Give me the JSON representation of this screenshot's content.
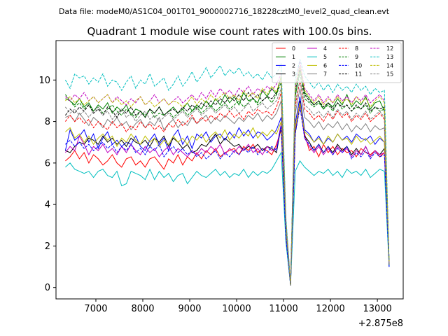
{
  "chart_data": {
    "type": "line",
    "suptitle": "Data file: modeM0/AS1C04_001T01_9000002716_18228cztM0_level2_quad_clean.evt",
    "title": "Quadrant 1 module wise count rates with 100.0s bins.",
    "xlabel": "",
    "ylabel": "",
    "x_offset_label": "+2.875e8",
    "xlim": [
      6150,
      13550
    ],
    "ylim": [
      -0.55,
      11.9
    ],
    "x_ticks": [
      7000,
      8000,
      9000,
      10000,
      11000,
      12000,
      13000
    ],
    "x_tick_labels": [
      "7000",
      "8000",
      "9000",
      "10000",
      "11000",
      "12000",
      "13000"
    ],
    "y_ticks": [
      0,
      2,
      4,
      6,
      8,
      10
    ],
    "y_tick_labels": [
      "0",
      "2",
      "4",
      "6",
      "8",
      "10"
    ],
    "x_start": 6350,
    "x_step": 100,
    "legend_columns": 4,
    "legend_location": "upper right",
    "series": [
      {
        "name": "0",
        "color": "#ff0000",
        "dash": "solid",
        "values": [
          6.1,
          6.3,
          6.6,
          6.2,
          6.5,
          6.0,
          6.4,
          6.2,
          5.9,
          6.1,
          6.4,
          6.0,
          5.8,
          6.2,
          6.3,
          5.9,
          6.1,
          5.8,
          6.2,
          6.3,
          6.0,
          5.7,
          6.2,
          6.0,
          6.4,
          5.9,
          6.3,
          6.1,
          6.5,
          6.2,
          6.6,
          6.4,
          6.7,
          6.3,
          6.5,
          6.6,
          6.7,
          6.4,
          6.8,
          6.6,
          6.9,
          6.5,
          6.7,
          6.6,
          6.4,
          6.9,
          7.6,
          2.5,
          0.2,
          7.5,
          8.8,
          7.4,
          6.6,
          6.8,
          6.3,
          6.9,
          6.5,
          6.8,
          6.4,
          6.7,
          6.5,
          6.6,
          6.3,
          6.7,
          6.5,
          6.4,
          6.6,
          6.3,
          6.5,
          1.2
        ]
      },
      {
        "name": "1",
        "color": "#008000",
        "dash": "solid",
        "values": [
          9.1,
          9.0,
          8.8,
          9.1,
          8.7,
          8.9,
          8.5,
          8.8,
          8.6,
          8.9,
          8.4,
          8.7,
          8.5,
          8.8,
          8.3,
          8.6,
          8.5,
          8.2,
          8.6,
          8.4,
          8.7,
          8.3,
          8.5,
          8.7,
          8.4,
          8.6,
          8.9,
          8.5,
          8.8,
          8.6,
          9.0,
          8.7,
          9.1,
          8.8,
          9.3,
          8.9,
          9.2,
          8.8,
          9.4,
          9.0,
          9.1,
          8.9,
          9.5,
          9.2,
          9.6,
          9.3,
          10.2,
          3.0,
          0.2,
          9.2,
          10.5,
          9.4,
          9.1,
          8.8,
          9.0,
          8.6,
          8.9,
          8.7,
          9.1,
          8.8,
          9.3,
          8.7,
          9.0,
          8.8,
          9.2,
          8.6,
          8.9,
          9.0,
          8.5,
          1.2
        ]
      },
      {
        "name": "2",
        "color": "#0000ff",
        "dash": "solid",
        "values": [
          6.6,
          7.6,
          7.1,
          7.3,
          7.6,
          7.0,
          7.4,
          6.7,
          7.2,
          7.5,
          6.9,
          7.1,
          6.8,
          7.0,
          6.9,
          7.3,
          6.8,
          6.6,
          7.1,
          7.4,
          6.9,
          7.2,
          6.6,
          7.3,
          7.6,
          6.9,
          7.3,
          6.7,
          7.4,
          7.2,
          7.5,
          7.0,
          7.3,
          7.4,
          7.1,
          7.5,
          7.2,
          7.7,
          7.3,
          7.6,
          7.2,
          7.5,
          7.4,
          7.1,
          7.3,
          7.6,
          8.2,
          2.7,
          0.2,
          7.9,
          9.2,
          7.6,
          7.4,
          7.0,
          7.3,
          6.9,
          7.2,
          7.0,
          7.4,
          7.1,
          7.3,
          7.0,
          7.4,
          7.2,
          7.1,
          7.3,
          6.9,
          7.2,
          7.0,
          1.0
        ]
      },
      {
        "name": "3",
        "color": "#000000",
        "dash": "solid",
        "values": [
          6.6,
          6.5,
          6.8,
          7.0,
          6.9,
          7.2,
          7.1,
          6.9,
          7.3,
          7.0,
          7.2,
          6.9,
          7.1,
          6.8,
          7.2,
          7.0,
          6.9,
          7.1,
          6.8,
          7.2,
          7.0,
          7.3,
          6.8,
          7.2,
          7.0,
          6.7,
          6.9,
          6.5,
          6.6,
          6.9,
          6.8,
          7.1,
          7.4,
          6.9,
          7.2,
          7.0,
          6.8,
          6.9,
          6.6,
          6.8,
          6.7,
          6.9,
          6.6,
          6.8,
          6.7,
          6.5,
          7.8,
          2.5,
          0.1,
          7.4,
          9.0,
          7.3,
          7.0,
          6.6,
          6.9,
          6.5,
          6.8,
          6.5,
          6.9,
          6.6,
          6.8,
          6.4,
          6.7,
          6.4,
          6.8,
          6.3,
          6.6,
          6.4,
          6.7,
          1.1
        ]
      },
      {
        "name": "4",
        "color": "#bf00bf",
        "dash": "solid",
        "values": [
          6.5,
          6.8,
          6.6,
          7.3,
          6.9,
          6.4,
          6.8,
          6.6,
          6.9,
          6.5,
          6.7,
          6.4,
          6.8,
          6.5,
          6.9,
          6.6,
          6.4,
          6.8,
          6.5,
          6.7,
          6.3,
          6.6,
          6.8,
          6.4,
          6.7,
          6.5,
          6.3,
          6.6,
          6.4,
          6.7,
          6.5,
          6.8,
          6.6,
          6.9,
          6.4,
          6.7,
          6.5,
          6.8,
          6.6,
          6.9,
          6.5,
          6.7,
          6.4,
          6.8,
          6.6,
          6.7,
          7.9,
          2.6,
          0.1,
          7.6,
          8.9,
          7.2,
          6.8,
          6.5,
          6.8,
          6.4,
          6.7,
          6.4,
          6.8,
          6.5,
          6.7,
          6.3,
          6.6,
          6.4,
          6.8,
          6.3,
          6.6,
          6.4,
          6.5,
          1.1
        ]
      },
      {
        "name": "5",
        "color": "#00bfbf",
        "dash": "solid",
        "values": [
          5.8,
          6.0,
          5.7,
          5.6,
          5.5,
          5.6,
          5.3,
          5.6,
          5.7,
          5.4,
          5.3,
          5.6,
          4.9,
          5.0,
          5.6,
          5.5,
          5.4,
          5.2,
          5.7,
          5.2,
          5.6,
          5.3,
          5.5,
          5.1,
          5.4,
          5.5,
          5.0,
          5.3,
          5.6,
          5.4,
          5.3,
          5.5,
          5.7,
          5.4,
          5.6,
          5.3,
          5.5,
          5.4,
          5.7,
          5.3,
          5.6,
          5.4,
          5.6,
          5.5,
          5.7,
          6.1,
          6.5,
          2.2,
          0.1,
          5.6,
          6.1,
          5.8,
          5.6,
          5.4,
          5.6,
          5.5,
          5.7,
          5.4,
          5.6,
          5.3,
          5.7,
          5.5,
          5.6,
          5.4,
          5.7,
          5.3,
          5.5,
          5.7,
          5.6,
          1.0
        ]
      },
      {
        "name": "6",
        "color": "#bfbf00",
        "dash": "solid",
        "values": [
          7.5,
          7.7,
          7.2,
          7.4,
          7.0,
          7.3,
          6.9,
          7.2,
          7.4,
          7.1,
          7.3,
          6.8,
          7.2,
          7.0,
          7.4,
          7.1,
          6.9,
          7.3,
          7.0,
          7.2,
          6.8,
          7.1,
          6.9,
          7.3,
          7.0,
          7.2,
          6.9,
          7.3,
          7.1,
          7.4,
          7.0,
          7.3,
          7.5,
          7.2,
          7.6,
          7.1,
          7.4,
          7.2,
          7.5,
          7.3,
          7.7,
          7.2,
          7.5,
          7.3,
          7.6,
          7.4,
          8.0,
          2.8,
          0.2,
          7.7,
          8.9,
          7.5,
          7.3,
          7.0,
          7.2,
          6.9,
          7.3,
          7.0,
          7.4,
          7.1,
          7.2,
          6.9,
          7.3,
          7.0,
          7.2,
          6.9,
          7.1,
          7.3,
          7.0,
          1.2
        ]
      },
      {
        "name": "7",
        "color": "#808080",
        "dash": "solid",
        "values": [
          8.2,
          8.3,
          8.0,
          8.4,
          8.1,
          7.8,
          8.2,
          8.0,
          7.7,
          8.1,
          7.9,
          8.2,
          7.8,
          8.0,
          7.6,
          7.9,
          8.1,
          7.7,
          8.0,
          7.8,
          8.2,
          7.6,
          7.9,
          8.1,
          7.7,
          8.0,
          7.8,
          8.2,
          7.9,
          8.1,
          8.3,
          7.9,
          8.2,
          8.0,
          8.3,
          8.1,
          7.9,
          8.2,
          8.0,
          8.3,
          8.1,
          8.4,
          8.0,
          8.3,
          8.1,
          8.4,
          9.0,
          2.9,
          0.1,
          8.4,
          9.6,
          8.2,
          8.0,
          7.7,
          8.0,
          7.6,
          7.9,
          7.7,
          8.0,
          7.6,
          7.9,
          7.5,
          7.8,
          7.6,
          7.9,
          7.5,
          7.8,
          7.6,
          7.7,
          1.1
        ]
      },
      {
        "name": "8",
        "color": "#ff0000",
        "dash": "dashed",
        "values": [
          8.0,
          8.3,
          8.0,
          8.2,
          7.9,
          8.1,
          7.7,
          8.0,
          7.8,
          7.6,
          8.0,
          7.7,
          7.9,
          7.5,
          7.8,
          7.6,
          8.0,
          7.7,
          7.9,
          7.6,
          7.8,
          7.5,
          7.9,
          7.7,
          8.1,
          7.8,
          8.0,
          8.3,
          7.9,
          8.2,
          8.0,
          8.3,
          8.1,
          8.4,
          8.2,
          8.5,
          8.2,
          8.4,
          8.1,
          8.5,
          8.3,
          8.6,
          8.4,
          8.5,
          8.3,
          8.7,
          9.4,
          3.0,
          0.2,
          8.7,
          10.0,
          8.6,
          8.4,
          8.1,
          8.3,
          8.0,
          8.4,
          8.1,
          8.5,
          8.2,
          8.4,
          8.0,
          8.3,
          8.1,
          8.4,
          8.0,
          8.2,
          8.4,
          8.1,
          1.1
        ]
      },
      {
        "name": "9",
        "color": "#008000",
        "dash": "dashed",
        "values": [
          9.3,
          9.0,
          8.7,
          8.9,
          8.6,
          8.8,
          8.5,
          8.7,
          8.4,
          8.6,
          8.8,
          8.5,
          8.3,
          8.6,
          8.4,
          8.2,
          8.5,
          8.3,
          8.6,
          8.2,
          8.4,
          8.3,
          8.5,
          8.2,
          8.4,
          8.6,
          8.3,
          8.5,
          8.7,
          8.4,
          8.6,
          8.8,
          8.5,
          8.7,
          8.9,
          8.6,
          8.8,
          9.0,
          8.7,
          8.9,
          9.1,
          8.8,
          9.0,
          9.2,
          8.9,
          9.3,
          9.9,
          3.1,
          0.1,
          9.3,
          10.3,
          9.1,
          8.9,
          8.7,
          8.9,
          8.6,
          8.8,
          8.5,
          8.9,
          8.6,
          8.8,
          8.5,
          8.7,
          8.6,
          8.8,
          8.4,
          8.7,
          8.5,
          8.6,
          1.1
        ]
      },
      {
        "name": "10",
        "color": "#0000ff",
        "dash": "dashed",
        "values": [
          6.9,
          7.1,
          6.8,
          7.0,
          6.7,
          6.9,
          6.6,
          6.8,
          7.0,
          6.7,
          6.9,
          6.5,
          6.8,
          6.6,
          6.9,
          6.5,
          6.7,
          6.4,
          6.8,
          6.6,
          6.9,
          6.3,
          6.6,
          6.8,
          6.5,
          6.7,
          6.4,
          6.6,
          6.3,
          6.5,
          6.2,
          6.4,
          6.6,
          6.2,
          6.5,
          6.3,
          6.6,
          6.4,
          6.7,
          6.5,
          6.8,
          6.4,
          6.7,
          6.5,
          6.8,
          6.6,
          7.8,
          2.4,
          0.1,
          7.4,
          8.7,
          7.2,
          6.9,
          6.6,
          6.9,
          6.5,
          6.8,
          6.4,
          6.7,
          6.5,
          6.8,
          6.2,
          6.5,
          6.3,
          6.6,
          6.2,
          6.5,
          6.3,
          6.4,
          1.0
        ]
      },
      {
        "name": "11",
        "color": "#000000",
        "dash": "dashed",
        "values": [
          8.3,
          8.6,
          8.4,
          8.7,
          8.5,
          8.8,
          8.4,
          8.6,
          8.3,
          8.7,
          8.5,
          8.2,
          8.6,
          8.4,
          8.7,
          8.3,
          8.5,
          8.2,
          8.6,
          8.4,
          8.7,
          8.3,
          8.5,
          8.6,
          8.4,
          8.7,
          8.5,
          8.8,
          8.6,
          8.9,
          8.7,
          9.0,
          8.8,
          9.1,
          8.9,
          9.2,
          9.0,
          9.3,
          9.0,
          9.4,
          9.1,
          9.3,
          9.0,
          9.2,
          9.1,
          9.4,
          10.1,
          3.2,
          0.1,
          9.5,
          10.6,
          9.3,
          9.0,
          8.8,
          9.0,
          8.7,
          8.9,
          8.6,
          8.9,
          8.7,
          8.8,
          8.5,
          8.8,
          8.6,
          8.9,
          8.5,
          8.7,
          8.6,
          8.7,
          1.2
        ]
      },
      {
        "name": "12",
        "color": "#bf00bf",
        "dash": "dashed",
        "values": [
          9.2,
          9.0,
          9.3,
          9.1,
          9.4,
          9.0,
          9.2,
          8.9,
          9.1,
          9.3,
          8.9,
          9.2,
          9.0,
          8.8,
          9.1,
          8.9,
          9.2,
          8.8,
          9.0,
          9.3,
          8.9,
          9.1,
          8.8,
          9.0,
          9.2,
          8.9,
          9.1,
          9.3,
          9.0,
          9.4,
          9.1,
          9.5,
          9.2,
          9.6,
          9.3,
          9.5,
          9.2,
          9.6,
          9.4,
          9.7,
          9.3,
          9.6,
          9.4,
          9.7,
          9.5,
          9.8,
          10.3,
          3.3,
          0.2,
          9.6,
          10.9,
          9.6,
          9.3,
          9.0,
          9.3,
          8.9,
          9.2,
          8.9,
          9.3,
          9.0,
          9.2,
          8.9,
          9.2,
          9.0,
          9.3,
          8.9,
          9.1,
          9.3,
          9.0,
          1.2
        ]
      },
      {
        "name": "13",
        "color": "#00bfbf",
        "dash": "dashed",
        "values": [
          10.0,
          9.6,
          10.3,
          10.1,
          10.2,
          9.8,
          10.1,
          9.9,
          10.3,
          9.7,
          10.0,
          9.9,
          9.5,
          9.9,
          10.2,
          9.6,
          10.0,
          9.8,
          10.3,
          9.7,
          9.9,
          10.1,
          9.5,
          9.8,
          10.2,
          9.7,
          10.0,
          10.4,
          9.9,
          10.2,
          10.6,
          10.1,
          10.4,
          10.7,
          10.2,
          10.5,
          10.3,
          10.6,
          10.2,
          10.4,
          10.1,
          10.3,
          10.0,
          10.4,
          10.1,
          10.3,
          10.8,
          3.4,
          0.2,
          10.0,
          11.0,
          10.2,
          9.9,
          9.6,
          9.9,
          9.5,
          9.8,
          9.4,
          9.8,
          9.5,
          9.7,
          9.4,
          9.8,
          9.5,
          9.7,
          9.3,
          9.6,
          9.4,
          9.5,
          1.3
        ]
      },
      {
        "name": "14",
        "color": "#bfbf00",
        "dash": "dashed",
        "values": [
          9.0,
          9.2,
          8.9,
          9.1,
          8.8,
          9.0,
          9.2,
          8.9,
          9.1,
          9.3,
          8.9,
          9.1,
          8.8,
          9.0,
          8.7,
          9.0,
          9.2,
          8.8,
          9.0,
          8.7,
          8.9,
          9.1,
          8.8,
          9.0,
          8.9,
          8.7,
          8.9,
          9.2,
          8.8,
          9.1,
          8.9,
          9.3,
          9.0,
          9.2,
          9.4,
          9.1,
          9.3,
          9.0,
          9.5,
          9.2,
          9.4,
          9.1,
          9.6,
          9.3,
          9.7,
          9.4,
          10.2,
          3.2,
          0.1,
          9.7,
          10.7,
          9.5,
          9.2,
          8.9,
          9.2,
          8.8,
          9.1,
          8.9,
          9.2,
          8.9,
          9.1,
          8.8,
          9.2,
          8.9,
          9.1,
          8.7,
          9.0,
          9.2,
          8.9,
          1.2
        ]
      },
      {
        "name": "15",
        "color": "#808080",
        "dash": "dashed",
        "values": [
          8.7,
          8.4,
          8.6,
          8.3,
          8.5,
          8.2,
          8.5,
          8.7,
          8.3,
          8.5,
          8.1,
          8.4,
          8.6,
          8.2,
          8.4,
          8.0,
          8.3,
          8.5,
          8.1,
          8.3,
          8.0,
          8.2,
          8.4,
          8.1,
          8.3,
          8.5,
          8.2,
          8.4,
          8.6,
          8.3,
          8.5,
          8.7,
          8.4,
          8.6,
          8.8,
          8.5,
          8.7,
          8.4,
          8.6,
          8.9,
          8.5,
          8.7,
          8.9,
          8.6,
          8.8,
          9.0,
          9.6,
          3.0,
          0.1,
          8.9,
          10.0,
          8.8,
          8.6,
          8.3,
          8.5,
          8.2,
          8.5,
          8.2,
          8.6,
          8.3,
          8.5,
          8.1,
          8.4,
          8.2,
          8.5,
          8.1,
          8.3,
          8.5,
          8.2,
          1.1
        ]
      }
    ]
  }
}
